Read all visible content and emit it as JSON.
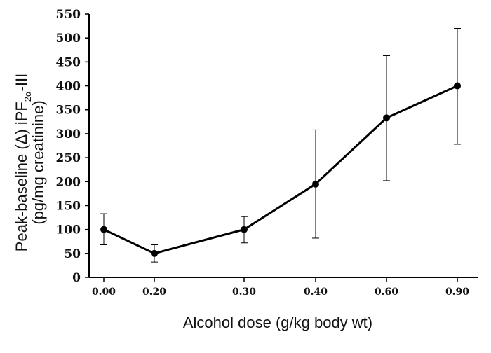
{
  "chart_data": {
    "type": "line",
    "xlabel": "Alcohol dose (g/kg body wt)",
    "ylabel": {
      "line1_parts": [
        "Peak-baseline (Δ) iPF",
        "2α",
        "-III"
      ],
      "line2": "(pg/mg creatinine)"
    },
    "categories": [
      "0.00",
      "0.20",
      "0.30",
      "0.40",
      "0.60",
      "0.90"
    ],
    "series": [
      {
        "values": [
          100,
          50,
          100,
          195,
          333,
          400
        ],
        "error_low": [
          68,
          32,
          72,
          82,
          202,
          278
        ],
        "error_high": [
          133,
          68,
          127,
          308,
          463,
          520
        ]
      }
    ],
    "ylim": [
      0,
      550
    ],
    "yticks": [
      "0",
      "50",
      "100",
      "150",
      "200",
      "250",
      "300",
      "350",
      "400",
      "450",
      "500",
      "550"
    ],
    "grid": false,
    "line_color": "#000000"
  }
}
